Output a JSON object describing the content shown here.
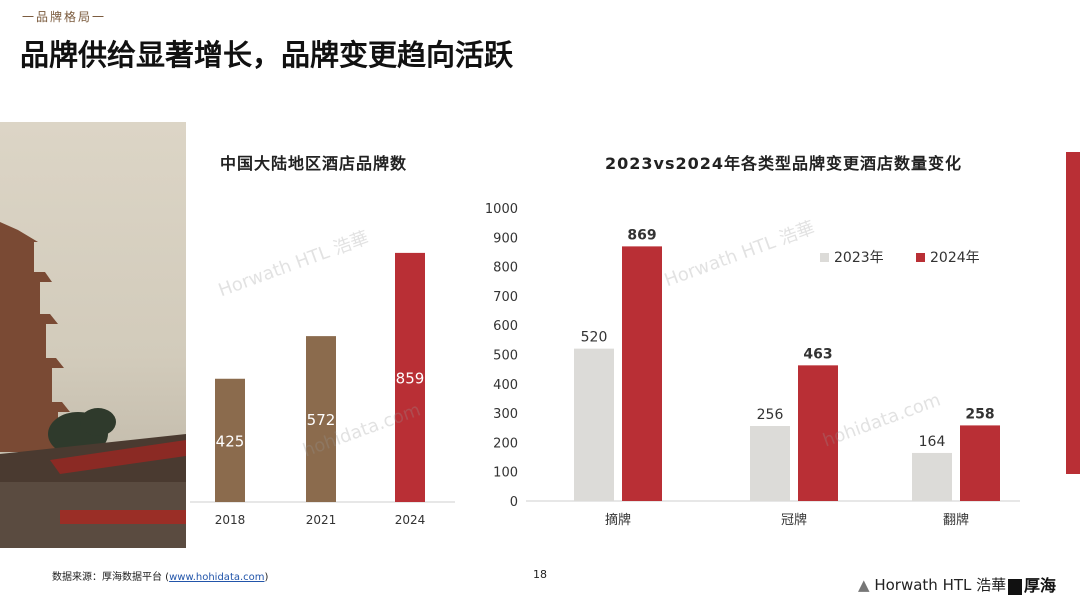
{
  "header": {
    "section_tag": "一品牌格局一",
    "title": "品牌供给显著增长，品牌变更趋向活跃"
  },
  "footer": {
    "source_label": "数据来源：厚海数据平台 (",
    "source_link": "www.hohidata.com",
    "source_close": ")",
    "page_number": "18",
    "logo_text": "Horwath HTL 浩華",
    "logo2_text": "厚海"
  },
  "colors": {
    "brown": "#8b6b4d",
    "red": "#b92f35",
    "gray": "#dcdbd8"
  },
  "chart_data": [
    {
      "type": "bar",
      "title": "中国大陆地区酒店品牌数",
      "categories": [
        "2018",
        "2021",
        "2024"
      ],
      "values": [
        425,
        572,
        859
      ],
      "colors": [
        "#8b6b4d",
        "#8b6b4d",
        "#b92f35"
      ],
      "ylim": [
        0,
        1000
      ]
    },
    {
      "type": "bar",
      "title": "2023vs2024年各类型品牌变更酒店数量变化",
      "categories": [
        "摘牌",
        "冠牌",
        "翻牌"
      ],
      "series": [
        {
          "name": "2023年",
          "values": [
            520,
            256,
            164
          ],
          "color": "#dcdbd8"
        },
        {
          "name": "2024年",
          "values": [
            869,
            463,
            258
          ],
          "color": "#b92f35"
        }
      ],
      "ylim": [
        0,
        1000
      ],
      "yticks": [
        0,
        100,
        200,
        300,
        400,
        500,
        600,
        700,
        800,
        900,
        1000
      ],
      "legend": "top-right"
    }
  ]
}
